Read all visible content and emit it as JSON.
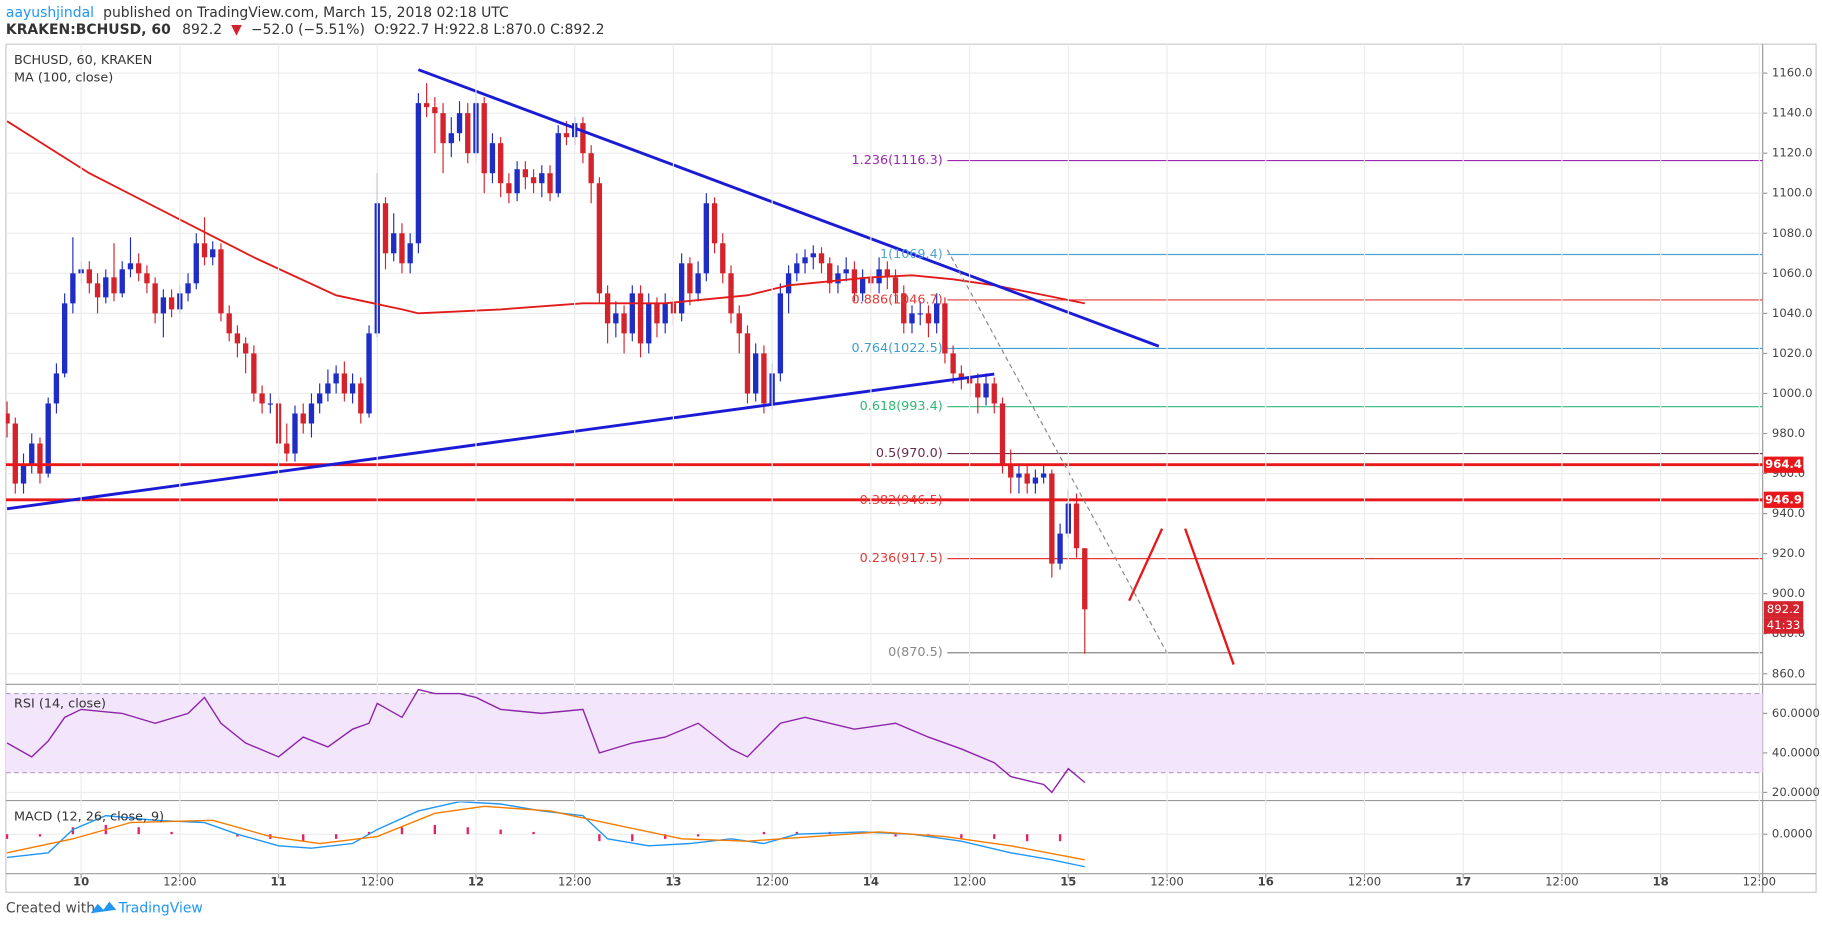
{
  "header": {
    "author": "aayushjindal",
    "published": "published on TradingView.com, March 15, 2018 02:18 UTC",
    "symbol": "KRAKEN:BCHUSD, 60",
    "price": "892.2",
    "arrow": "▼",
    "change": "−52.0 (−5.51%)",
    "ohlc": "O:922.7 H:922.8 L:870.0 C:892.2"
  },
  "footer": {
    "created": "Created with",
    "brand": "TradingView"
  },
  "chart_data": [
    {
      "type": "candlestick",
      "title": "BCHUSD, 60, KRAKEN",
      "up_color": "#1f2dc4",
      "down_color": "#d4232c",
      "open": [
        990,
        985,
        955,
        965,
        975,
        960,
        995,
        1010,
        1045,
        1060,
        1062,
        1055,
        1048,
        1058,
        1050,
        1062,
        1065,
        1060,
        1055,
        1040,
        1048,
        1042,
        1050,
        1055,
        1075,
        1068,
        1072,
        1040,
        1030,
        1025,
        1020,
        1000,
        995,
        995,
        975,
        970,
        990,
        985,
        995,
        1000,
        1005,
        1010,
        1000,
        1005,
        990,
        1030,
        1095,
        1070,
        1080,
        1065,
        1075,
        1145,
        1143,
        1140,
        1125,
        1130,
        1140,
        1120,
        1145,
        1110,
        1125,
        1105,
        1100,
        1112,
        1108,
        1105,
        1110,
        1100,
        1130,
        1128,
        1135,
        1120,
        1105,
        1050,
        1035,
        1040,
        1030,
        1050,
        1025,
        1045,
        1035,
        1045,
        1040,
        1065,
        1050,
        1060,
        1095,
        1075,
        1060,
        1040,
        1030,
        1000,
        1020,
        995,
        1010,
        1050,
        1060,
        1065,
        1068,
        1070,
        1065,
        1055,
        1060,
        1062,
        1050,
        1058,
        1055,
        1062,
        1058,
        1050,
        1035,
        1040,
        1040,
        1035,
        1045,
        1020,
        1010,
        1008,
        1005,
        998,
        1005,
        995,
        965,
        958,
        960,
        955,
        958,
        960,
        915,
        930,
        945,
        922.7
      ],
      "high": [
        996,
        988,
        970,
        980,
        978,
        998,
        1015,
        1050,
        1078,
        1066,
        1066,
        1060,
        1062,
        1075,
        1066,
        1078,
        1070,
        1064,
        1058,
        1052,
        1052,
        1054,
        1060,
        1080,
        1088,
        1076,
        1075,
        1044,
        1034,
        1028,
        1024,
        1004,
        1000,
        998,
        985,
        994,
        995,
        1000,
        1005,
        1012,
        1014,
        1016,
        1010,
        1008,
        1034,
        1110,
        1098,
        1090,
        1085,
        1080,
        1150,
        1155,
        1148,
        1145,
        1138,
        1146,
        1145,
        1150,
        1148,
        1130,
        1128,
        1110,
        1116,
        1116,
        1112,
        1114,
        1114,
        1134,
        1136,
        1138,
        1138,
        1124,
        1108,
        1054,
        1046,
        1044,
        1054,
        1054,
        1050,
        1048,
        1050,
        1048,
        1070,
        1068,
        1066,
        1100,
        1098,
        1080,
        1064,
        1044,
        1034,
        1025,
        1024,
        1015,
        1055,
        1064,
        1070,
        1072,
        1074,
        1073,
        1068,
        1064,
        1068,
        1066,
        1062,
        1062,
        1068,
        1066,
        1062,
        1054,
        1044,
        1046,
        1044,
        1050,
        1048,
        1024,
        1014,
        1012,
        1010,
        1010,
        1008,
        998,
        972,
        964,
        964,
        962,
        964,
        962,
        935,
        952,
        950,
        922.8
      ],
      "low": [
        978,
        950,
        950,
        960,
        955,
        958,
        990,
        1008,
        1040,
        1055,
        1050,
        1040,
        1045,
        1046,
        1048,
        1058,
        1056,
        1050,
        1035,
        1028,
        1038,
        1040,
        1046,
        1052,
        1064,
        1064,
        1036,
        1026,
        1018,
        1010,
        996,
        990,
        990,
        970,
        966,
        966,
        980,
        978,
        990,
        996,
        1000,
        996,
        995,
        985,
        988,
        1028,
        1062,
        1066,
        1060,
        1060,
        1070,
        1138,
        1120,
        1110,
        1118,
        1126,
        1115,
        1116,
        1100,
        1105,
        1098,
        1095,
        1096,
        1102,
        1100,
        1098,
        1096,
        1098,
        1124,
        1124,
        1115,
        1095,
        1045,
        1025,
        1028,
        1020,
        1026,
        1018,
        1020,
        1028,
        1030,
        1034,
        1036,
        1044,
        1046,
        1056,
        1070,
        1055,
        1035,
        1020,
        995,
        996,
        990,
        992,
        1006,
        1040,
        1056,
        1060,
        1062,
        1060,
        1050,
        1050,
        1056,
        1046,
        1046,
        1050,
        1050,
        1052,
        1045,
        1030,
        1030,
        1034,
        1028,
        1030,
        1015,
        1005,
        1002,
        998,
        990,
        994,
        990,
        960,
        950,
        950,
        950,
        950,
        955,
        908,
        912,
        928,
        918,
        870
      ],
      "close": [
        985,
        955,
        965,
        975,
        960,
        995,
        1010,
        1045,
        1060,
        1062,
        1055,
        1048,
        1058,
        1050,
        1062,
        1065,
        1060,
        1055,
        1040,
        1048,
        1042,
        1050,
        1055,
        1075,
        1068,
        1072,
        1040,
        1030,
        1025,
        1020,
        1000,
        995,
        995,
        975,
        970,
        990,
        985,
        995,
        1000,
        1005,
        1010,
        1000,
        1005,
        990,
        1030,
        1095,
        1070,
        1080,
        1065,
        1075,
        1145,
        1143,
        1140,
        1125,
        1130,
        1140,
        1120,
        1145,
        1110,
        1125,
        1105,
        1100,
        1112,
        1108,
        1105,
        1110,
        1100,
        1130,
        1128,
        1135,
        1120,
        1105,
        1050,
        1035,
        1040,
        1030,
        1050,
        1025,
        1045,
        1035,
        1045,
        1040,
        1065,
        1050,
        1060,
        1095,
        1075,
        1060,
        1040,
        1030,
        1000,
        1020,
        995,
        1010,
        1050,
        1060,
        1065,
        1068,
        1070,
        1065,
        1055,
        1060,
        1062,
        1050,
        1058,
        1055,
        1062,
        1058,
        1050,
        1035,
        1040,
        1040,
        1035,
        1045,
        1020,
        1010,
        1008,
        1005,
        998,
        1005,
        995,
        965,
        958,
        960,
        955,
        958,
        960,
        915,
        930,
        945,
        922.7,
        892.2
      ],
      "ma": {
        "name": "MA (100, close)",
        "color": "#e31a1a",
        "x": [
          0,
          10,
          20,
          30,
          40,
          48,
          50,
          60,
          70,
          80,
          90,
          95,
          105,
          110,
          115,
          120,
          125,
          131
        ],
        "values": [
          1136,
          1110,
          1089,
          1068,
          1049,
          1042,
          1040,
          1042,
          1045,
          1045,
          1049,
          1054,
          1058,
          1059,
          1057,
          1054,
          1050,
          1045
        ]
      },
      "xlim": [
        -0.14,
        213.4
      ],
      "ylim": [
        855.3,
        1173.3
      ],
      "yticks": [
        {
          "value": 860,
          "label": "860.0"
        },
        {
          "value": 880,
          "label": "880.0"
        },
        {
          "value": 900,
          "label": "900.0"
        },
        {
          "value": 920,
          "label": "920.0"
        },
        {
          "value": 940,
          "label": "940.0"
        },
        {
          "value": 960,
          "label": "960.0"
        },
        {
          "value": 980,
          "label": "980.0"
        },
        {
          "value": 1000,
          "label": "1000.0"
        },
        {
          "value": 1020,
          "label": "1020.0"
        },
        {
          "value": 1040,
          "label": "1040.0"
        },
        {
          "value": 1060,
          "label": "1060.0"
        },
        {
          "value": 1080,
          "label": "1080.0"
        },
        {
          "value": 1100,
          "label": "1100.0"
        },
        {
          "value": 1120,
          "label": "1120.0"
        },
        {
          "value": 1140,
          "label": "1140.0"
        },
        {
          "value": 1160,
          "label": "1160.0"
        }
      ],
      "xticks": [
        {
          "value": 9,
          "label": "10"
        },
        {
          "value": 21,
          "label": "12:00"
        },
        {
          "value": 33,
          "label": "11"
        },
        {
          "value": 45,
          "label": "12:00"
        },
        {
          "value": 57,
          "label": "12"
        },
        {
          "value": 69,
          "label": "12:00"
        },
        {
          "value": 81,
          "label": "13"
        },
        {
          "value": 93,
          "label": "12:00"
        },
        {
          "value": 105,
          "label": "14"
        },
        {
          "value": 117,
          "label": "12:00"
        },
        {
          "value": 129,
          "label": "15"
        },
        {
          "value": 141,
          "label": "12:00"
        },
        {
          "value": 153,
          "label": "16"
        },
        {
          "value": 165,
          "label": "12:00"
        },
        {
          "value": 177,
          "label": "17"
        },
        {
          "value": 189,
          "label": "12:00"
        },
        {
          "value": 201,
          "label": "18"
        },
        {
          "value": 213,
          "label": "12:00"
        }
      ],
      "grid": true,
      "levels": [
        964.4,
        946.9
      ],
      "level_color": "#e8171a",
      "last_price": 892.2,
      "countdown": "41:33",
      "fib": {
        "start": 114.3,
        "levels": [
          {
            "value": 1116.3,
            "label": "1.236(1116.3)",
            "color": "#9c27b0"
          },
          {
            "value": 1069.4,
            "label": "1(1069.4)",
            "color": "#4fa3d1"
          },
          {
            "value": 1046.7,
            "label": "0.886(1046.7)",
            "color": "#e53935"
          },
          {
            "value": 1022.5,
            "label": "0.764(1022.5)",
            "color": "#3a9fd0"
          },
          {
            "value": 993.4,
            "label": "0.618(993.4)",
            "color": "#2eb872"
          },
          {
            "value": 970.0,
            "label": "0.5(970.0)",
            "color": "#6d2b4f"
          },
          {
            "value": 946.5,
            "label": "0.382(946.5)",
            "color": "#e53935"
          },
          {
            "value": 917.5,
            "label": "0.236(917.5)",
            "color": "#e53935"
          },
          {
            "value": 870.5,
            "label": "0(870.5)",
            "color": "#888888"
          }
        ]
      },
      "trendlines": [
        {
          "color": "#1b1bd6",
          "width": 2.5,
          "points": [
            [
              50,
              1161.7
            ],
            [
              140,
              1023.6
            ]
          ]
        },
        {
          "color": "#1b1bd6",
          "width": 2.5,
          "points": [
            [
              0,
              942.4
            ],
            [
              120,
              1009.7
            ]
          ]
        },
        {
          "color": "#888888",
          "width": 1,
          "dash": true,
          "points": [
            [
              114.3,
              1071.8
            ],
            [
              141,
              870.4
            ]
          ]
        },
        {
          "color": "#e8171a",
          "width": 2,
          "points": [
            [
              136.4,
              896.5
            ],
            [
              140.4,
              932.5
            ]
          ]
        },
        {
          "color": "#e8171a",
          "width": 2,
          "points": [
            [
              143.2,
              932.5
            ],
            [
              149.1,
              864.6
            ]
          ]
        }
      ]
    },
    {
      "type": "line",
      "title": "RSI (14, close)",
      "color": "#8e24aa",
      "band": [
        30,
        70
      ],
      "band_color": "#f3e5fb",
      "x": [
        0,
        3,
        5,
        7,
        9,
        14,
        18,
        22,
        24,
        26,
        29,
        33,
        36,
        39,
        42,
        44,
        45,
        48,
        50,
        52,
        55,
        57,
        60,
        65,
        70,
        72,
        76,
        80,
        84,
        88,
        90,
        94,
        97,
        103,
        108,
        112,
        116,
        120,
        122,
        126,
        127,
        129,
        131
      ],
      "values": [
        45,
        38,
        46,
        58,
        62,
        60,
        55,
        60,
        68,
        55,
        45,
        38,
        48,
        43,
        52,
        55,
        65,
        58,
        72,
        70,
        70,
        68,
        62,
        60,
        62,
        40,
        45,
        48,
        55,
        42,
        38,
        55,
        58,
        52,
        55,
        48,
        42,
        35,
        28,
        24,
        20,
        32,
        25
      ],
      "xlim": [
        -0.14,
        213.4
      ],
      "ylim": [
        16.5,
        72.9
      ],
      "yticks": [
        {
          "value": 60,
          "label": "60.0000"
        },
        {
          "value": 40,
          "label": "40.0000"
        },
        {
          "value": 20,
          "label": "20.0000"
        }
      ]
    },
    {
      "type": "macd",
      "title": "MACD (12, 26, close, 9)",
      "xlim": [
        -0.14,
        213.4
      ],
      "ylim": [
        -1.7,
        1.4
      ],
      "yticks": [
        {
          "value": 0,
          "label": "0.0000"
        }
      ],
      "series": [
        {
          "color": "#2196f3",
          "x": [
            0,
            5,
            8,
            12,
            18,
            24,
            28,
            33,
            37,
            42,
            45,
            50,
            55,
            60,
            65,
            70,
            73,
            78,
            83,
            88,
            92,
            96,
            104,
            110,
            116,
            122,
            127,
            131
          ],
          "values": [
            -1.0,
            -0.8,
            0.2,
            0.8,
            0.6,
            0.5,
            0.0,
            -0.5,
            -0.6,
            -0.4,
            0.2,
            1.0,
            1.4,
            1.3,
            1.0,
            0.8,
            -0.2,
            -0.5,
            -0.4,
            -0.2,
            -0.4,
            0.0,
            0.1,
            0.0,
            -0.3,
            -0.8,
            -1.1,
            -1.4
          ]
        },
        {
          "color": "#f57c00",
          "x": [
            0,
            8,
            15,
            25,
            32,
            38,
            45,
            52,
            58,
            66,
            74,
            82,
            90,
            98,
            106,
            114,
            122,
            131
          ],
          "values": [
            -0.8,
            -0.2,
            0.5,
            0.6,
            -0.1,
            -0.4,
            -0.1,
            0.9,
            1.2,
            1.0,
            0.4,
            -0.2,
            -0.3,
            -0.1,
            0.1,
            -0.1,
            -0.5,
            -1.1
          ]
        }
      ],
      "histogram": {
        "color": "#e91e63",
        "x": [
          0,
          4,
          8,
          12,
          16,
          20,
          24,
          28,
          32,
          36,
          40,
          44,
          48,
          52,
          56,
          60,
          64,
          68,
          72,
          76,
          80,
          84,
          88,
          92,
          96,
          100,
          104,
          108,
          112,
          116,
          120,
          124,
          128
        ],
        "values": [
          -0.2,
          -0.1,
          0.3,
          0.4,
          0.3,
          0.1,
          0.0,
          -0.1,
          -0.2,
          -0.3,
          -0.2,
          0.1,
          0.3,
          0.4,
          0.3,
          0.2,
          0.1,
          0.0,
          -0.3,
          -0.3,
          -0.2,
          -0.1,
          0.0,
          0.1,
          0.1,
          0.1,
          0.0,
          -0.1,
          -0.1,
          -0.2,
          -0.2,
          -0.3,
          -0.3
        ]
      }
    }
  ]
}
